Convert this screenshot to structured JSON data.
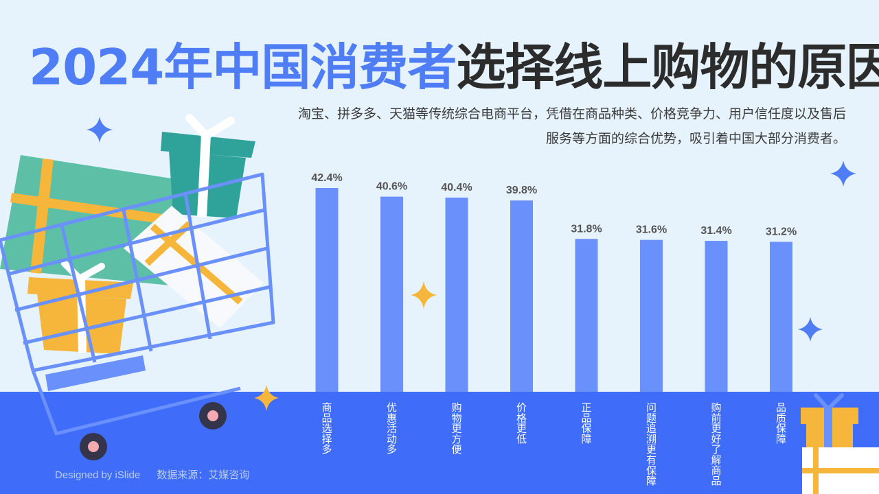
{
  "header": {
    "title_highlight": "2024年中国消费者",
    "title_rest": "选择线上购物的原因",
    "subtitle": "淘宝、拼多多、天猫等传统综合电商平台，凭借在商品种类、价格竞争力、用户信任度以及售后服务等方面的综合优势，吸引着中国大部分消费者。"
  },
  "footer": {
    "designer": "Designed by iSlide",
    "source": "数据来源：艾媒咨询"
  },
  "colors": {
    "bar": "#6a90fb",
    "band": "#3f6df9",
    "highlight": "#4f7df5",
    "background": "#e6f3fc"
  },
  "chart_data": {
    "type": "bar",
    "categories": [
      "商品选择多",
      "优惠活动多",
      "购物更方便",
      "价格更低",
      "正品保障",
      "问题追溯更有保障",
      "购前更好了解商品",
      "品质保障"
    ],
    "values": [
      42.4,
      40.6,
      40.4,
      39.8,
      31.8,
      31.6,
      31.4,
      31.2
    ],
    "value_labels": [
      "42.4%",
      "40.6%",
      "40.4%",
      "39.8%",
      "31.8%",
      "31.6%",
      "31.4%",
      "31.2%"
    ],
    "ylim": [
      0,
      42.4
    ],
    "grid": false,
    "legend": "none"
  }
}
